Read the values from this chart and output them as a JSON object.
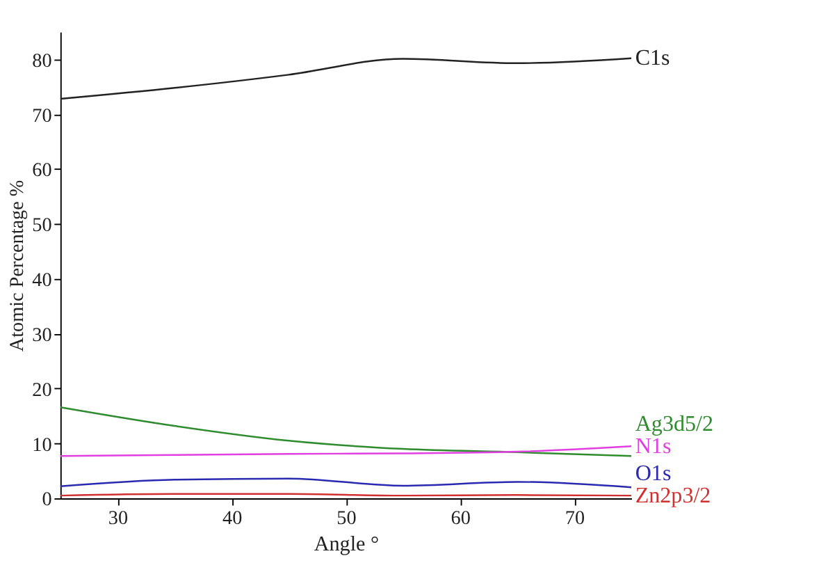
{
  "chart_data": {
    "type": "line",
    "xlabel": "Angle °",
    "ylabel": "Atomic Percentage %",
    "x": [
      25,
      35,
      45,
      55,
      65,
      75
    ],
    "series": [
      {
        "name": "C1s",
        "color": "#222222",
        "values": [
          72.8,
          74.8,
          77.2,
          80.1,
          79.3,
          80.2
        ]
      },
      {
        "name": "Ag3d5/2",
        "color": "#2e8b2e",
        "values": [
          16.6,
          13.2,
          10.5,
          9.0,
          8.4,
          7.7
        ]
      },
      {
        "name": "N1s",
        "color": "#e040e0",
        "values": [
          7.7,
          7.9,
          8.1,
          8.2,
          8.5,
          9.5
        ]
      },
      {
        "name": "O1s",
        "color": "#2a2ab0",
        "values": [
          2.2,
          3.4,
          3.6,
          2.3,
          3.0,
          2.0
        ]
      },
      {
        "name": "Zn2p3/2",
        "color": "#d03030",
        "values": [
          0.5,
          0.8,
          0.8,
          0.5,
          0.6,
          0.5
        ]
      }
    ],
    "xlim": [
      25,
      75
    ],
    "ylim": [
      0,
      85
    ],
    "xticks": [
      30,
      40,
      50,
      60,
      70
    ],
    "yticks": [
      0,
      10,
      20,
      30,
      40,
      50,
      60,
      70,
      80
    ],
    "grid": false,
    "legend": false,
    "marker": "none",
    "line_style": "solid"
  }
}
